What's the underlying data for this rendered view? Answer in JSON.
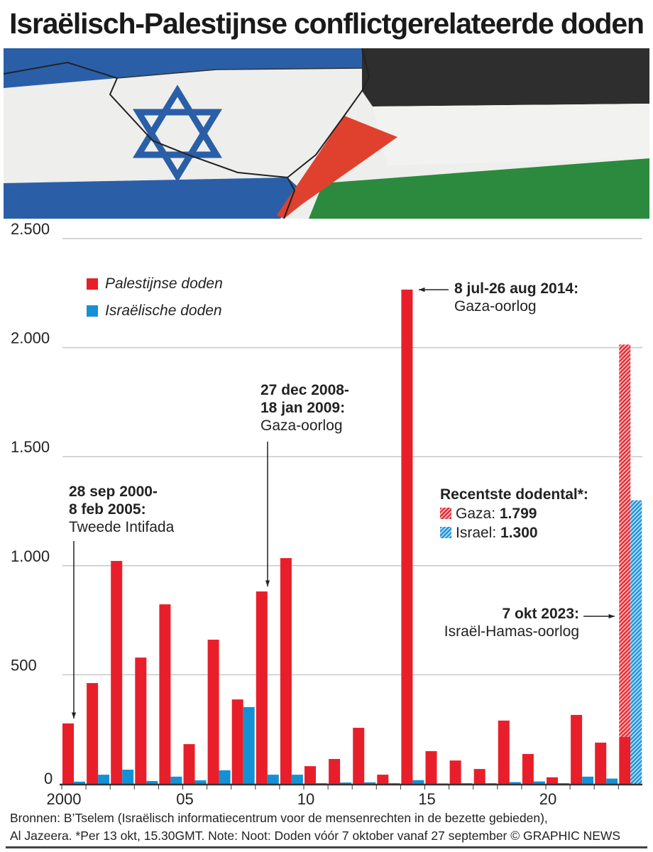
{
  "title": "Israëlisch-Palestijnse conflictgerelateerde doden",
  "legend": {
    "palestinian": "Palestijnse doden",
    "israeli": "Israëlische doden"
  },
  "colors": {
    "palestinian": "#e81f2a",
    "israeli": "#1590d5"
  },
  "annotations": [
    {
      "bold": "28 sep 2000-",
      "bold2": "8 feb 2005:",
      "text": "Tweede Intifada"
    },
    {
      "bold": "27 dec 2008-",
      "bold2": "18 jan 2009:",
      "text": "Gaza-oorlog"
    },
    {
      "bold": "8 jul-26 aug 2014:",
      "text": "Gaza-oorlog"
    },
    {
      "bold": "7 okt 2023:",
      "text": "Israël-Hamas-oorlog"
    }
  ],
  "recent": {
    "heading": "Recentste dodental*:",
    "gaza_label": "Gaza:",
    "gaza_value": "1.799",
    "israel_label": "Israel:",
    "israel_value": "1.300"
  },
  "footer": {
    "line1": "Bronnen: B’Tselem (Israëlisch informatiecentrum voor de mensenrechten in de bezette gebieden),",
    "line2": "Al Jazeera. *Per 13 okt, 15.30GMT. Note: Noot: Doden vóór 7 oktober vanaf 27 september © GRAPHIC NEWS"
  },
  "chart_data": {
    "type": "bar",
    "title": "Israëlisch-Palestijnse conflictgerelateerde doden",
    "xlabel": "",
    "ylabel": "",
    "ylim": [
      0,
      2500
    ],
    "yticks": [
      0,
      500,
      1000,
      1500,
      2000,
      2500
    ],
    "ytick_labels": [
      "0",
      "500",
      "1.000",
      "1.500",
      "2.000",
      "2.500"
    ],
    "categories": [
      2000,
      2001,
      2002,
      2003,
      2004,
      2005,
      2006,
      2007,
      2008,
      2009,
      2010,
      2011,
      2012,
      2013,
      2014,
      2015,
      2016,
      2017,
      2018,
      2019,
      2020,
      2021,
      2022,
      2023
    ],
    "xtick_labels": [
      {
        "year": 2000,
        "label": "2000"
      },
      {
        "year": 2005,
        "label": "05"
      },
      {
        "year": 2010,
        "label": "10"
      },
      {
        "year": 2015,
        "label": "15"
      },
      {
        "year": 2020,
        "label": "20"
      }
    ],
    "series": [
      {
        "name": "Palestijnse doden",
        "values": [
          277,
          462,
          1022,
          579,
          823,
          182,
          661,
          387,
          882,
          1035,
          81,
          114,
          257,
          42,
          2266,
          150,
          107,
          68,
          290,
          137,
          30,
          316,
          189,
          215
        ]
      },
      {
        "name": "Israëlische doden",
        "values": [
          10,
          42,
          65,
          13,
          33,
          16,
          62,
          352,
          42,
          42,
          3,
          6,
          7,
          3,
          17,
          2,
          3,
          3,
          8,
          11,
          3,
          33,
          24,
          0
        ]
      }
    ],
    "recent_hatched": [
      {
        "name": "Gaza",
        "year": 2023,
        "value": 1799
      },
      {
        "name": "Israel",
        "year": 2023,
        "value": 1300
      }
    ],
    "grid": true,
    "legend_position": "top-left"
  }
}
